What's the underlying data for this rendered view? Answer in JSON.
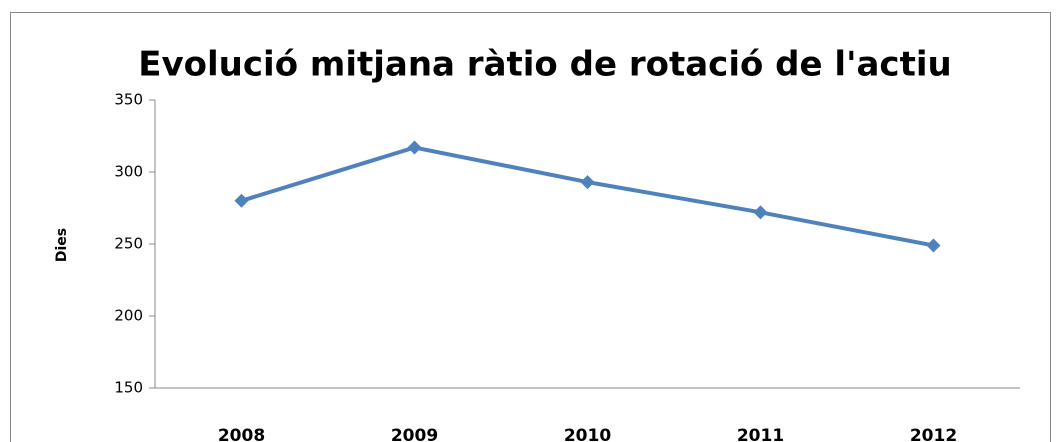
{
  "chart_data": {
    "type": "line",
    "title": "Evolució mitjana ràtio de rotació de l'actiu",
    "y_label": "Dies",
    "categories": [
      "2008",
      "2009",
      "2010",
      "2011",
      "2012"
    ],
    "series": [
      {
        "name": "Dies",
        "color": "#4f81bd",
        "values": [
          280,
          317,
          293,
          272,
          249
        ]
      }
    ],
    "ylim": [
      150,
      350
    ],
    "yticks": [
      150,
      200,
      250,
      300,
      350
    ],
    "grid": false
  }
}
